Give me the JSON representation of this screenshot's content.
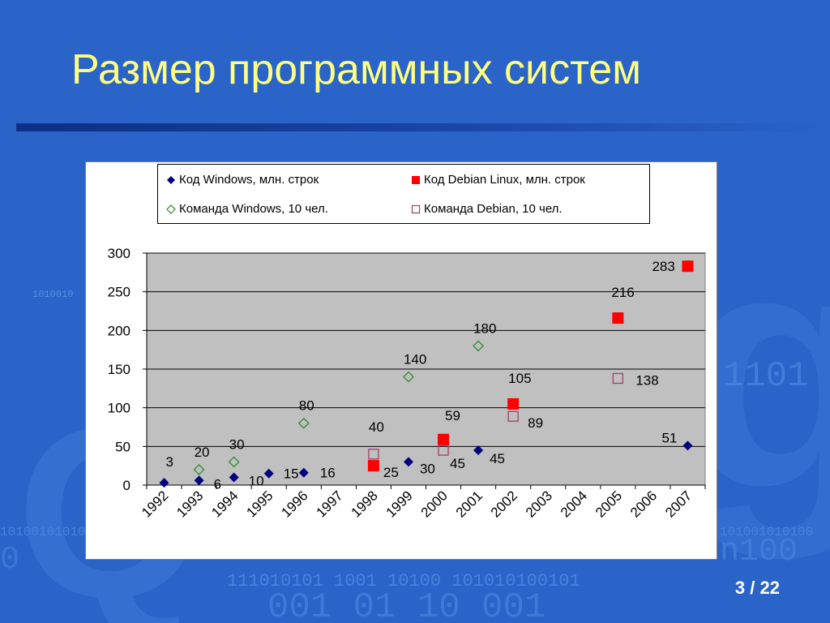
{
  "slide": {
    "title": "Размер программных систем",
    "page_current": "3",
    "page_separator": "/",
    "page_total": "22",
    "background_color": "#2a64c8",
    "title_color": "#ffff80"
  },
  "chart_data": {
    "type": "scatter",
    "title": "",
    "xlabel": "",
    "ylabel": "",
    "categories": [
      "1992",
      "1993",
      "1994",
      "1995",
      "1996",
      "1997",
      "1998",
      "1999",
      "2000",
      "2001",
      "2002",
      "2003",
      "2004",
      "2005",
      "2006",
      "2007"
    ],
    "ylim": [
      0,
      300
    ],
    "yticks": [
      0,
      50,
      100,
      150,
      200,
      250,
      300
    ],
    "grid": "horizontal",
    "plot_background": "#c0c0c0",
    "legend_position": "top",
    "series": [
      {
        "name": "Код Windows, млн. строк",
        "marker": "diamond-filled",
        "color": "#000080",
        "points": [
          {
            "x": "1992",
            "y": 3
          },
          {
            "x": "1993",
            "y": 6
          },
          {
            "x": "1994",
            "y": 10
          },
          {
            "x": "1995",
            "y": 15
          },
          {
            "x": "1996",
            "y": 16
          },
          {
            "x": "1999",
            "y": 30
          },
          {
            "x": "2001",
            "y": 45
          },
          {
            "x": "2007",
            "y": 51
          }
        ]
      },
      {
        "name": "Код Debian Linux, млн. строк",
        "marker": "square-filled",
        "color": "#ff0000",
        "points": [
          {
            "x": "1998",
            "y": 25
          },
          {
            "x": "2000",
            "y": 59
          },
          {
            "x": "2002",
            "y": 105
          },
          {
            "x": "2005",
            "y": 216
          },
          {
            "x": "2007",
            "y": 283
          }
        ]
      },
      {
        "name": "Команда Windows, 10 чел.",
        "marker": "diamond-open",
        "color": "#2e8b2e",
        "points": [
          {
            "x": "1993",
            "y": 20
          },
          {
            "x": "1994",
            "y": 30
          },
          {
            "x": "1996",
            "y": 80
          },
          {
            "x": "1999",
            "y": 140
          },
          {
            "x": "2001",
            "y": 180
          }
        ]
      },
      {
        "name": "Команда Debian, 10 чел.",
        "marker": "square-open",
        "color": "#a0406a",
        "points": [
          {
            "x": "1998",
            "y": 40
          },
          {
            "x": "2000",
            "y": 45
          },
          {
            "x": "2002",
            "y": 89
          },
          {
            "x": "2005",
            "y": 138
          }
        ]
      }
    ]
  }
}
